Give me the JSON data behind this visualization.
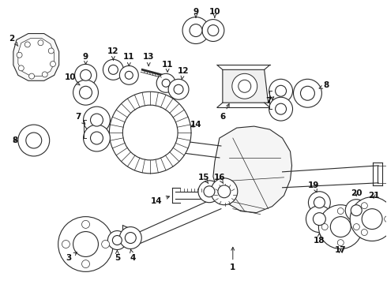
{
  "bg_color": "#ffffff",
  "lc": "#2a2a2a",
  "lw": 0.8
}
